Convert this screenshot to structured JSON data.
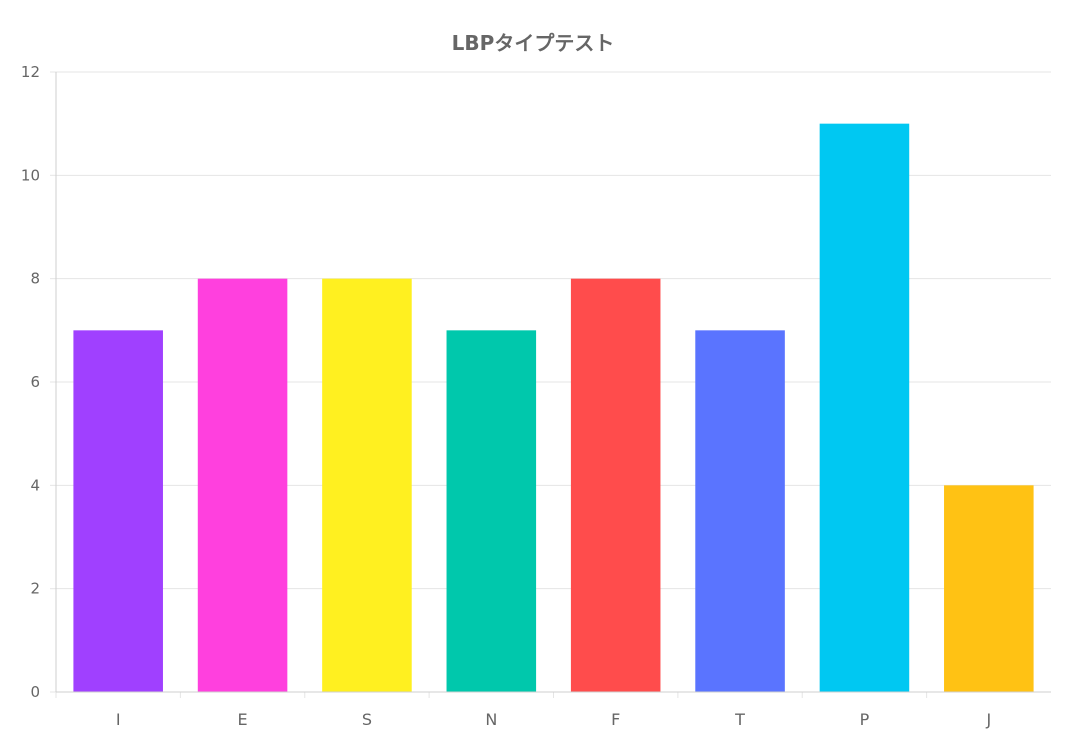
{
  "chart_data": {
    "type": "bar",
    "title": "LBPタイプテスト",
    "categories": [
      "I",
      "E",
      "S",
      "N",
      "F",
      "T",
      "P",
      "J"
    ],
    "values": [
      7,
      8,
      8,
      7,
      8,
      7,
      11,
      4
    ],
    "colors": [
      "#a040ff",
      "#ff40de",
      "#fff020",
      "#00c8ac",
      "#ff4c4c",
      "#5a74ff",
      "#00c8f2",
      "#ffc214"
    ],
    "xlabel": "",
    "ylabel": "",
    "ylim": [
      0,
      12
    ],
    "yticks": [
      0,
      2,
      4,
      6,
      8,
      10,
      12
    ],
    "grid": true,
    "legend": "none"
  }
}
